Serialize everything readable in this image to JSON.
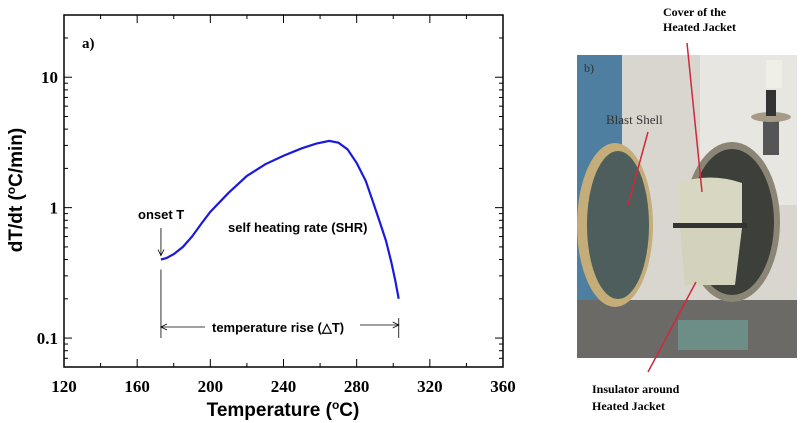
{
  "chart_data": {
    "type": "line",
    "panel_label": "a)",
    "xlabel": "Temperature (",
    "xlabel_sup": "o",
    "xlabel_end": "C)",
    "ylabel": "dT/dt (",
    "ylabel_sup": "o",
    "ylabel_end": "C/min)",
    "xlim": [
      120,
      360
    ],
    "ylim": [
      0.06,
      30
    ],
    "yscale": "log",
    "grid": false,
    "xticks": [
      120,
      160,
      200,
      240,
      280,
      320,
      360
    ],
    "xtick_labels": [
      "120",
      "160",
      "200",
      "240",
      "280",
      "320",
      "360"
    ],
    "yticks": [
      0.1,
      1,
      10
    ],
    "ytick_labels": [
      "0.1",
      "1",
      "10"
    ],
    "series": [
      {
        "color": "#1a1adc",
        "x": [
          173,
          176,
          180,
          185,
          190,
          195,
          200,
          210,
          220,
          230,
          240,
          250,
          258,
          265,
          270,
          275,
          280,
          285,
          289,
          293,
          296,
          299,
          301,
          303
        ],
        "y": [
          0.4,
          0.41,
          0.44,
          0.5,
          0.6,
          0.75,
          0.93,
          1.3,
          1.75,
          2.15,
          2.5,
          2.85,
          3.1,
          3.25,
          3.15,
          2.8,
          2.2,
          1.6,
          1.1,
          0.75,
          0.56,
          0.38,
          0.28,
          0.2
        ]
      }
    ],
    "annotations": {
      "onset": "onset T",
      "shr": "self heating rate (SHR)",
      "rise": "temperature rise (△T)",
      "onset_x": 173,
      "end_x": 303
    }
  },
  "photo": {
    "panel_label": "b)",
    "label_cover": [
      "Cover of the",
      "Heated Jacket"
    ],
    "label_blast": "Blast Shell",
    "label_insulator": [
      "Insulator around",
      "Heated Jacket"
    ],
    "arrow_color": "#d0283c"
  }
}
